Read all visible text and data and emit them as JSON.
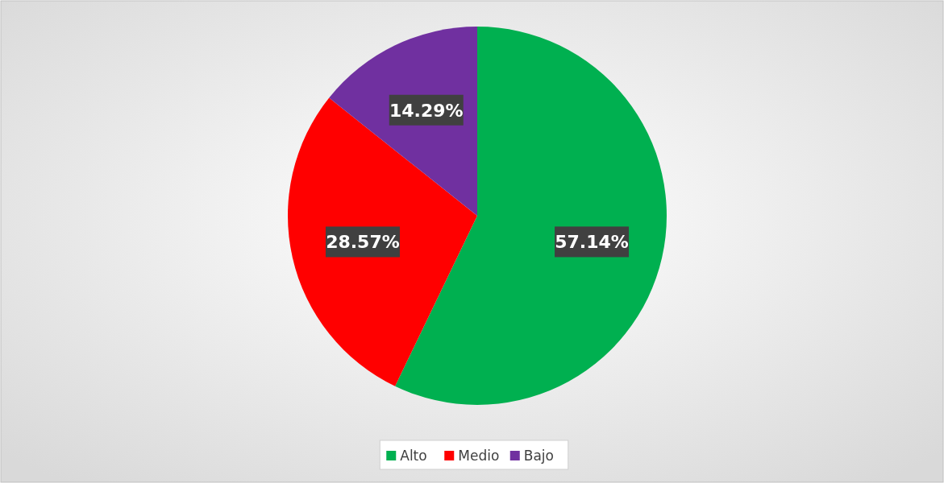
{
  "chart_data": {
    "type": "pie",
    "categories": [
      "Alto",
      "Medio",
      "Bajo"
    ],
    "values": [
      57.14,
      28.57,
      14.29
    ],
    "colors": [
      "#00b050",
      "#ff0000",
      "#7030a0"
    ],
    "value_labels": [
      "57.14%",
      "28.57%",
      "14.29%"
    ],
    "legend": "bottom"
  }
}
